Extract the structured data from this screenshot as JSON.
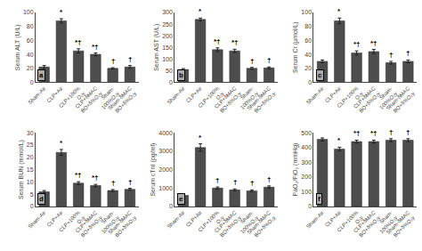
{
  "chart_data": [
    {
      "type": "bar",
      "panel_label": "a",
      "ylabel": "Serum ALT (U/L)",
      "categories": [
        "Sham-Air",
        "CLP+Air",
        "CLP+100%\nO₂y",
        "CLP+δMAC\nBO+δ%O₂y",
        "Sham-\n100%O₂y",
        "Sham-δMAC\nBO+δ%O₂y"
      ],
      "values": [
        22,
        88,
        45,
        40,
        20,
        22
      ],
      "errors": [
        2,
        3,
        3,
        2,
        1,
        2
      ],
      "annotations": [
        {
          "x": "CLP+Air",
          "text": "*"
        },
        {
          "x": "CLP+100%\nO₂y",
          "text": "*†"
        },
        {
          "x": "CLP+δMAC\nBO+δ%O₂y",
          "text": "*†"
        },
        {
          "x": "Sham-\n100%O₂y",
          "text": "†"
        },
        {
          "x": "Sham-δMAC\nBO+δ%O₂y",
          "text": "†"
        }
      ],
      "color": "#4d4d4d",
      "ylim": [
        0,
        100
      ],
      "yticks": [
        0,
        20,
        40,
        60,
        80,
        100
      ],
      "grid": false
    },
    {
      "type": "bar",
      "panel_label": "b",
      "ylabel": "Serum AST (U/L)",
      "categories": [
        "Sham-Air",
        "CLP+Air",
        "CLP+100%\nO₂y",
        "CLP+δMAC\nBO+δ%O₂y",
        "Sham-\n100%O₂y",
        "Sham-δMAC\nBO+δ%O₂y"
      ],
      "values": [
        55,
        270,
        140,
        135,
        60,
        62
      ],
      "errors": [
        4,
        6,
        8,
        7,
        4,
        4
      ],
      "annotations": [
        {
          "x": "CLP+Air",
          "text": "*"
        },
        {
          "x": "CLP+100%\nO₂y",
          "text": "*†"
        },
        {
          "x": "CLP+δMAC\nBO+δ%O₂y",
          "text": "*†"
        },
        {
          "x": "Sham-\n100%O₂y",
          "text": "†"
        },
        {
          "x": "Sham-δMAC\nBO+δ%O₂y",
          "text": "†"
        }
      ],
      "color": "#4d4d4d",
      "ylim": [
        0,
        300
      ],
      "yticks": [
        0,
        50,
        100,
        150,
        200,
        250,
        300
      ],
      "grid": false
    },
    {
      "type": "bar",
      "panel_label": "c",
      "ylabel": "Serum Cr (μmol/L)",
      "categories": [
        "Sham-Air",
        "CLP+Air",
        "CLP+100%\nO₂y",
        "CLP+δMAC\nBO+δ%O₂y",
        "Sham-\n100%O₂y",
        "Sham-δMAC\nBO+δ%O₂y"
      ],
      "values": [
        30,
        88,
        42,
        44,
        28,
        30
      ],
      "errors": [
        2,
        4,
        3,
        3,
        2,
        2
      ],
      "annotations": [
        {
          "x": "CLP+Air",
          "text": "*"
        },
        {
          "x": "CLP+100%\nO₂y",
          "text": "*†"
        },
        {
          "x": "CLP+δMAC\nBO+δ%O₂y",
          "text": "*†"
        },
        {
          "x": "Sham-\n100%O₂y",
          "text": "†"
        },
        {
          "x": "Sham-δMAC\nBO+δ%O₂y",
          "text": "†"
        }
      ],
      "color": "#4d4d4d",
      "ylim": [
        0,
        100
      ],
      "yticks": [
        0,
        20,
        40,
        60,
        80,
        100
      ],
      "grid": false
    },
    {
      "type": "bar",
      "panel_label": "d",
      "ylabel": "Serum BUN (mmol/L)",
      "categories": [
        "Sham-Air",
        "CLP+Air",
        "CLP+100%\nO₂y",
        "CLP+δMAC\nBO+δ%O₂y",
        "Sham-\n100%O₂y",
        "Sham-δMAC\nBO+δ%O₂y"
      ],
      "values": [
        6,
        22,
        9.5,
        8.5,
        6.5,
        7
      ],
      "errors": [
        0.5,
        1.2,
        0.6,
        0.5,
        0.4,
        0.4
      ],
      "annotations": [
        {
          "x": "CLP+Air",
          "text": "*"
        },
        {
          "x": "CLP+100%\nO₂y",
          "text": "*†"
        },
        {
          "x": "CLP+δMAC\nBO+δ%O₂y",
          "text": "*†"
        },
        {
          "x": "Sham-\n100%O₂y",
          "text": "†"
        },
        {
          "x": "Sham-δMAC\nBO+δ%O₂y",
          "text": "†"
        }
      ],
      "color": "#4d4d4d",
      "ylim": [
        0,
        30
      ],
      "yticks": [
        0,
        5,
        10,
        15,
        20,
        25,
        30
      ],
      "grid": false
    },
    {
      "type": "bar",
      "panel_label": "e",
      "ylabel": "Serum cTnI (pg/ml)",
      "categories": [
        "Sham-Air",
        "CLP+Air",
        "CLP+100%\nO₂y",
        "CLP+δMAC\nBO+δ%O₂y",
        "Sham-\n100%O₂y",
        "Sham-δMAC\nBO+δ%O₂y"
      ],
      "values": [
        600,
        3200,
        1000,
        900,
        850,
        1050
      ],
      "errors": [
        40,
        200,
        60,
        55,
        50,
        65
      ],
      "annotations": [
        {
          "x": "CLP+Air",
          "text": "*"
        },
        {
          "x": "CLP+100%\nO₂y",
          "text": "†"
        },
        {
          "x": "CLP+δMAC\nBO+δ%O₂y",
          "text": "†"
        },
        {
          "x": "Sham-\n100%O₂y",
          "text": "†"
        },
        {
          "x": "Sham-δMAC\nBO+δ%O₂y",
          "text": "†"
        }
      ],
      "color": "#4d4d4d",
      "ylim": [
        0,
        4000
      ],
      "yticks": [
        0,
        1000,
        2000,
        3000,
        4000
      ],
      "grid": false
    },
    {
      "type": "bar",
      "panel_label": "f",
      "ylabel": "PaO₂/FiO₂ (mmHg)",
      "categories": [
        "Sham-Air",
        "CLP+Air",
        "CLP+100%\nO₂y",
        "CLP+δMAC\nBO+δ%O₂y",
        "Sham-\n100%O₂y",
        "Sham-δMAC\nBO+δ%O₂y"
      ],
      "values": [
        455,
        390,
        440,
        440,
        450,
        450
      ],
      "errors": [
        10,
        12,
        10,
        10,
        10,
        10
      ],
      "annotations": [
        {
          "x": "CLP+Air",
          "text": "*"
        },
        {
          "x": "CLP+100%\nO₂y",
          "text": "*†"
        },
        {
          "x": "CLP+δMAC\nBO+δ%O₂y",
          "text": "*†"
        },
        {
          "x": "Sham-\n100%O₂y",
          "text": "†"
        },
        {
          "x": "Sham-δMAC\nBO+δ%O₂y",
          "text": "†"
        }
      ],
      "color": "#4d4d4d",
      "ylim": [
        0,
        500
      ],
      "yticks": [
        0,
        100,
        200,
        300,
        400,
        500
      ],
      "grid": false
    }
  ]
}
